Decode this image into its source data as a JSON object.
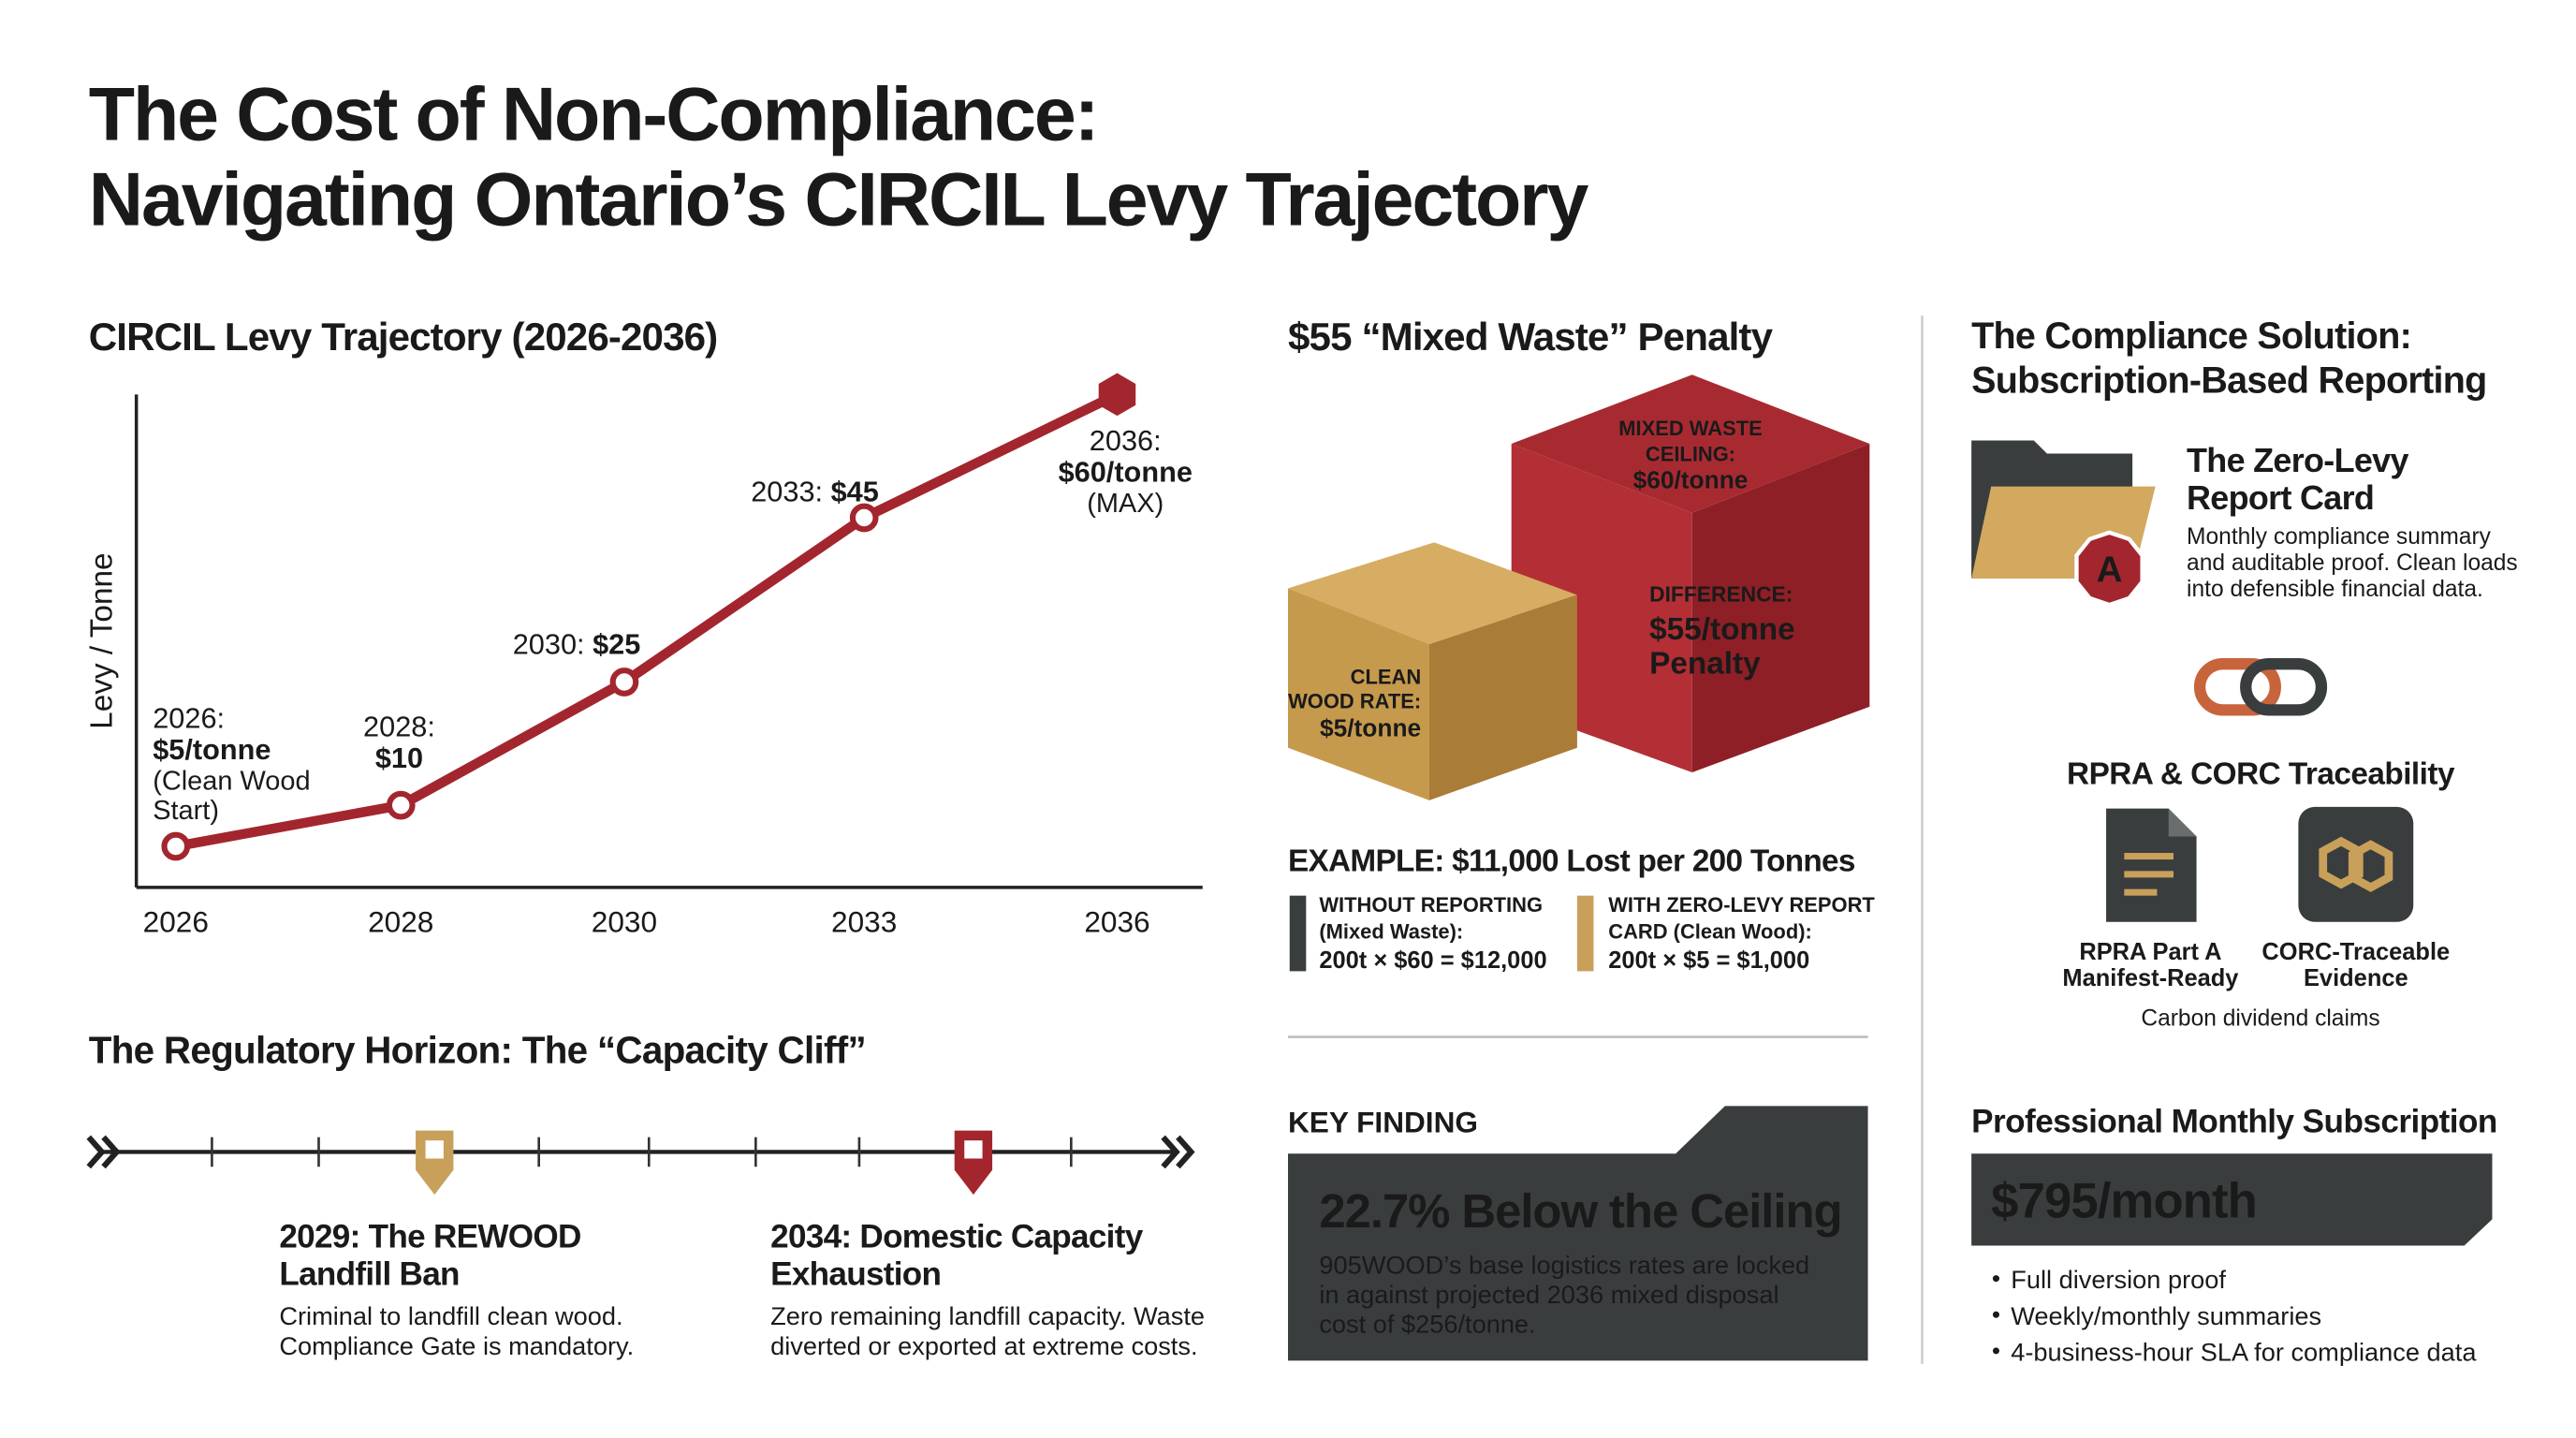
{
  "title_lines": [
    "The Cost of Non-Compliance:",
    "Navigating Ontario’s CIRCIL Levy Trajectory"
  ],
  "chart_data": {
    "type": "line",
    "title": "CIRCIL Levy Trajectory (2026-2036)",
    "y_label": "Levy / Tonne",
    "categories": [
      "2026",
      "2028",
      "2030",
      "2033",
      "2036"
    ],
    "values": [
      5,
      10,
      25,
      45,
      60
    ],
    "value_labels": [
      "$5/tonne",
      "$10",
      "$25",
      "$45",
      "$60/tonne"
    ],
    "label_prefixes": [
      "2026:",
      "2028:",
      "2030:",
      "2033:",
      "2036:"
    ],
    "label_notes": [
      [
        "(Clean Wood",
        "Start)"
      ],
      null,
      null,
      null,
      [
        "(MAX)"
      ]
    ],
    "ylim": [
      0,
      60
    ],
    "color": "#a3262e",
    "grid": false
  },
  "horizon": {
    "title": "The Regulatory Horizon: The “Capacity Cliff”",
    "events": [
      {
        "title_lines": [
          "2029: The REWOOD",
          "Landfill Ban"
        ],
        "text_lines": [
          "Criminal to landfill clean wood.",
          "Compliance Gate is mandatory."
        ]
      },
      {
        "title_lines": [
          "2034: Domestic Capacity",
          "Exhaustion"
        ],
        "text_lines": [
          "Zero remaining landfill capacity. Waste",
          "diverted or exported at extreme costs."
        ]
      }
    ]
  },
  "penalty": {
    "title": "$55 “Mixed Waste” Penalty",
    "ceiling_lines": [
      "MIXED WASTE",
      "CEILING:",
      "$60/tonne"
    ],
    "difference_lines": [
      "DIFFERENCE:",
      "$55/tonne",
      "Penalty"
    ],
    "clean_lines": [
      "CLEAN",
      "WOOD RATE:",
      "$5/tonne"
    ],
    "example_title": "EXAMPLE: $11,000 Lost per 200 Tonnes",
    "without_lines": [
      "WITHOUT REPORTING",
      "(Mixed Waste):",
      "200t × $60 = $12,000"
    ],
    "with_lines": [
      "WITH ZERO-LEVY REPORT",
      "CARD (Clean Wood):",
      "200t × $5 = $1,000"
    ]
  },
  "finding": {
    "label": "KEY FINDING",
    "headline": "22.7% Below the Ceiling",
    "text_lines": [
      "905WOOD’s base logistics rates are locked",
      "in against projected 2036 mixed disposal",
      "cost of $256/tonne."
    ]
  },
  "solution": {
    "title_lines": [
      "The Compliance Solution:",
      "Subscription-Based Reporting"
    ],
    "card_title_lines": [
      "The Zero-Levy",
      "Report Card"
    ],
    "card_badge": "A",
    "card_text_lines": [
      "Monthly compliance summary",
      "and auditable proof. Clean loads",
      "into defensible financial data."
    ],
    "trace_title": "RPRA & CORC Traceability",
    "rpra_lines": [
      "RPRA Part A",
      "Manifest-Ready"
    ],
    "corc_lines": [
      "CORC-Traceable",
      "Evidence"
    ],
    "trace_note": "Carbon dividend claims"
  },
  "subscription": {
    "title": "Professional Monthly Subscription",
    "price": "$795/month",
    "features": [
      "Full diversion proof",
      "Weekly/monthly summaries",
      "4-business-hour SLA for compliance data"
    ]
  }
}
